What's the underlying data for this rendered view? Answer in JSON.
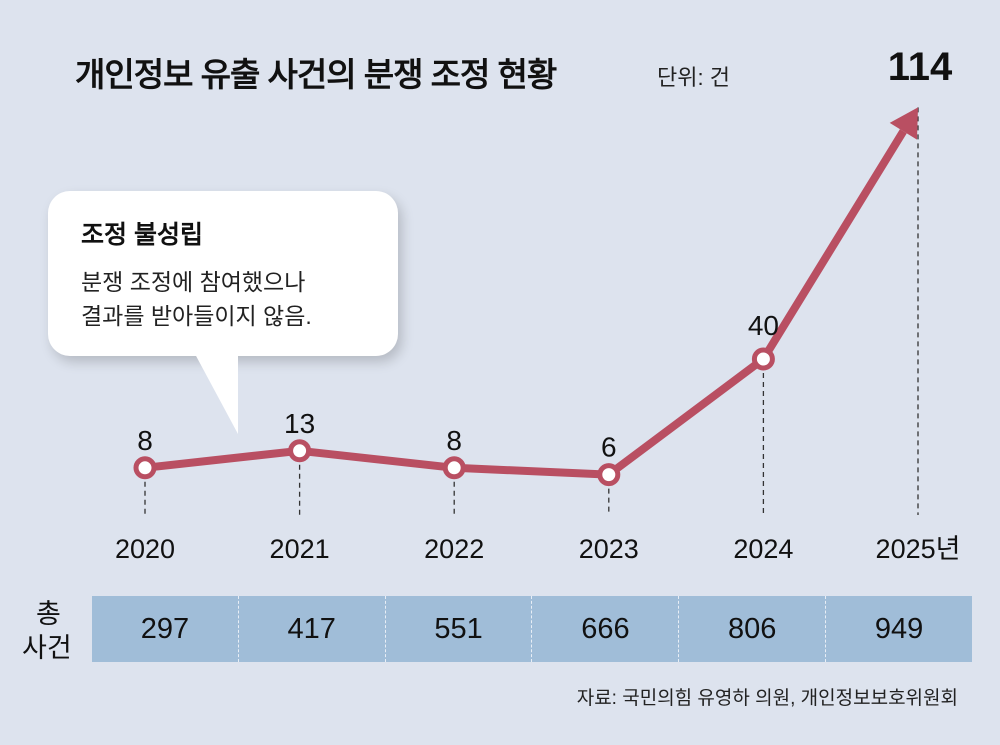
{
  "chart_data": {
    "type": "line",
    "title": "개인정보 유출 사건의 분쟁 조정 현황",
    "unit": "단위: 건",
    "categories": [
      "2020",
      "2021",
      "2022",
      "2023",
      "2024",
      "2025년"
    ],
    "series": [
      {
        "name": "조정 불성립",
        "values": [
          8,
          13,
          8,
          6,
          40,
          114
        ]
      }
    ],
    "colors": {
      "line": "#b94f62",
      "background": "#dde3ee",
      "table": "#a0bdd8"
    }
  },
  "callout": {
    "heading": "조정 불성립",
    "lines": [
      "분쟁 조정에 참여했으나",
      "결과를 받아들이지 않음."
    ]
  },
  "totals": {
    "label_line1": "총",
    "label_line2": "사건",
    "values": [
      "297",
      "417",
      "551",
      "666",
      "806",
      "949"
    ]
  },
  "source": "자료: 국민의힘 유영하 의원, 개인정보보호위원회"
}
